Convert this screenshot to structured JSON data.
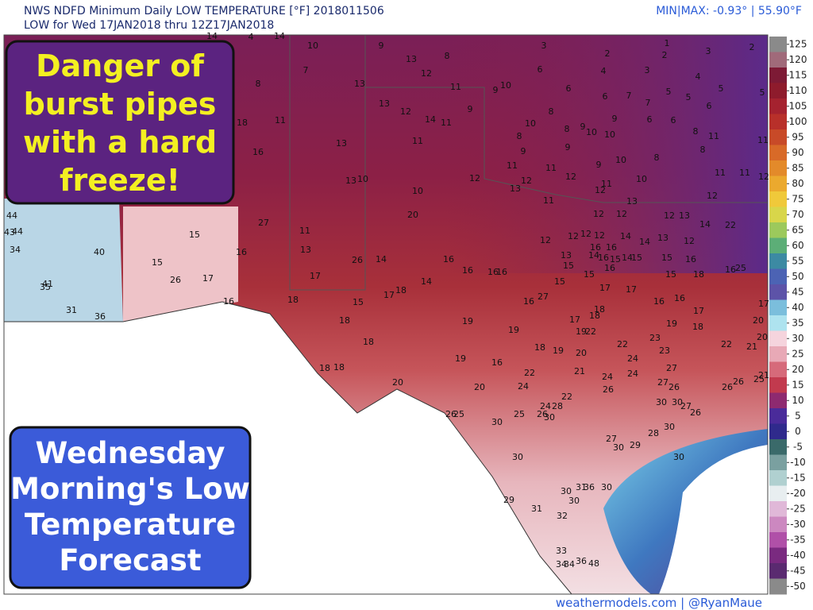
{
  "header": {
    "title": "NWS NDFD Minimum Daily LOW TEMPERATURE [°F]  2018011506",
    "subtitle": "LOW for Wed 17JAN2018 thru 12Z17JAN2018",
    "minmax": "MIN|MAX: -0.93° | 55.90°F"
  },
  "callouts": [
    {
      "lines": [
        "Danger of",
        "burst pipes",
        "with a hard",
        "freeze!"
      ]
    },
    {
      "lines": [
        "Wednesday",
        "Morning's Low",
        "Temperature",
        "Forecast"
      ]
    }
  ],
  "colorbar": {
    "ticks": [
      125,
      120,
      115,
      110,
      105,
      100,
      95,
      90,
      85,
      80,
      75,
      70,
      65,
      60,
      55,
      50,
      45,
      40,
      35,
      30,
      25,
      20,
      15,
      10,
      5,
      0,
      -5,
      -10,
      -15,
      -20,
      -25,
      -30,
      -35,
      -40,
      -45,
      -50
    ]
  },
  "footer": "weathermodels.com | @RyanMaue",
  "stations": [
    14,
    4,
    14,
    10,
    9,
    13,
    8,
    12,
    3,
    6,
    2,
    4,
    1,
    2,
    3,
    3,
    4,
    2,
    7,
    8,
    13,
    11,
    9,
    10,
    6,
    6,
    7,
    5,
    5,
    5,
    5,
    13,
    12,
    9,
    8,
    7,
    6,
    11,
    18,
    14,
    11,
    11,
    10,
    8,
    9,
    10,
    9,
    6,
    6,
    8,
    11,
    11,
    8,
    9,
    9,
    10,
    13,
    16,
    8,
    8,
    9,
    10,
    11,
    11,
    12,
    12,
    10,
    11,
    13,
    10,
    12,
    11,
    11,
    12,
    13,
    10,
    12,
    13,
    11,
    12,
    20,
    27,
    15,
    11,
    12,
    12,
    12,
    13,
    14,
    12,
    12,
    12,
    14,
    14,
    13,
    12,
    12,
    22,
    16,
    13,
    13,
    16,
    16,
    14,
    16,
    15,
    14,
    15,
    15,
    16,
    16,
    25,
    15,
    14,
    16,
    26,
    26,
    17,
    17,
    16,
    16,
    16,
    14,
    15,
    15,
    15,
    16,
    15,
    18,
    18,
    17,
    16,
    27,
    16,
    18,
    15,
    17,
    17,
    16,
    16,
    17,
    18,
    17,
    17,
    18,
    19,
    18,
    19,
    19,
    22,
    19,
    18,
    20,
    18,
    18,
    19,
    20,
    22,
    23,
    23,
    24,
    22,
    21,
    20,
    19,
    16,
    18,
    18,
    22,
    21,
    24,
    24,
    27,
    21,
    20,
    20,
    24,
    22,
    26,
    27,
    26,
    26,
    26,
    25,
    24,
    28,
    30,
    30,
    27,
    26,
    25,
    25,
    26,
    30,
    26,
    30,
    30,
    28,
    27,
    30,
    29,
    30,
    30,
    31,
    36,
    30,
    30,
    30,
    29,
    31,
    32,
    33,
    34,
    34,
    36,
    48,
    44,
    44,
    43,
    34,
    40,
    41,
    35,
    31,
    36
  ]
}
